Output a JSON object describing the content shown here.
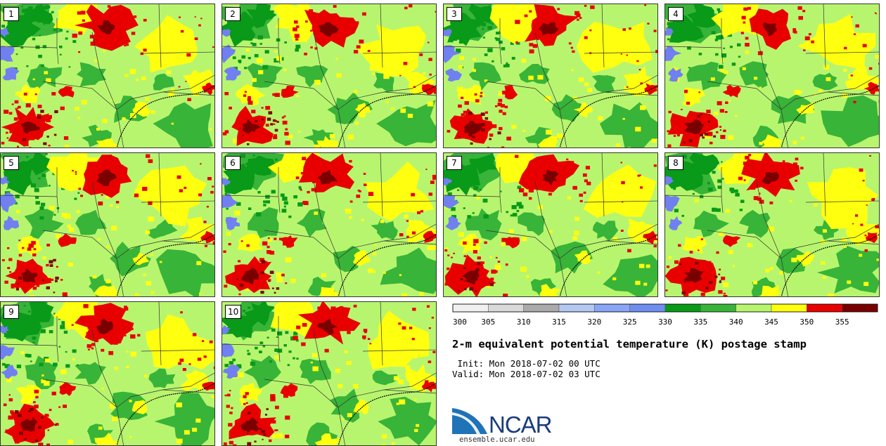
{
  "panels": [
    {
      "label": "1"
    },
    {
      "label": "2"
    },
    {
      "label": "3"
    },
    {
      "label": "4"
    },
    {
      "label": "5"
    },
    {
      "label": "6"
    },
    {
      "label": "7"
    },
    {
      "label": "8"
    },
    {
      "label": "9"
    },
    {
      "label": "10"
    }
  ],
  "colorbar": {
    "boundaries": [
      300,
      305,
      310,
      315,
      320,
      325,
      330,
      335,
      340,
      345,
      350,
      355,
      360
    ],
    "tick_labels": [
      "300",
      "305",
      "310",
      "315",
      "320",
      "325",
      "330",
      "335",
      "340",
      "345",
      "350",
      "355"
    ],
    "colors": [
      "#f0f0f0",
      "#d9d9d9",
      "#aaaaaa",
      "#b4c8f4",
      "#8aa6f6",
      "#6f8ef0",
      "#089a18",
      "#38b438",
      "#b8f56e",
      "#ffff10",
      "#e80000",
      "#7a0000"
    ]
  },
  "title": "2-m equivalent potential temperature (K) postage stamp",
  "init_line": " Init: Mon 2018-07-02 00 UTC",
  "valid_line": "Valid: Mon 2018-07-02 03 UTC",
  "logo_text": "NCAR",
  "site": "ensemble.ucar.edu",
  "map_colors": {
    "water": "#7080f0",
    "green_dark": "#089a18",
    "green_mid": "#38b438",
    "green_light": "#b8f56e",
    "yellow": "#ffff10",
    "red": "#e80000",
    "red_dark": "#7a0000",
    "border": "#333333"
  }
}
